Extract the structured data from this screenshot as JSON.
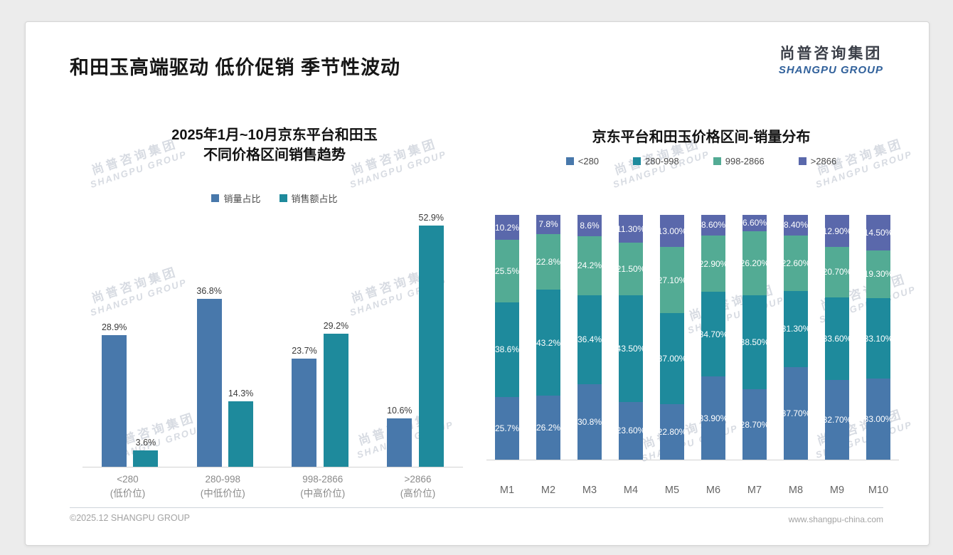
{
  "header": {
    "title": "和田玉高端驱动 低价促销 季节性波动",
    "logo_cn": "尚普咨询集团",
    "logo_en": "SHANGPU GROUP"
  },
  "watermark": {
    "line1": "尚普咨询集团",
    "line2": "SHANGPU GROUP"
  },
  "footer": {
    "left": "©2025.12 SHANGPU GROUP",
    "right": "www.shangpu-china.com"
  },
  "colors": {
    "steel_blue": "#4878ab",
    "teal": "#1e8a9c",
    "green": "#53ab94",
    "indigo": "#5a68ab"
  },
  "chart_data": [
    {
      "type": "bar",
      "title_lines": [
        "2025年1月~10月京东平台和田玉",
        "不同价格区间销售趋势"
      ],
      "legend_position": "top",
      "grid": false,
      "value_suffix": "%",
      "ylim": [
        0,
        55
      ],
      "categories": [
        "<280",
        "280-998",
        "998-2866",
        ">2866"
      ],
      "category_sublabels": [
        "(低价位)",
        "(中低价位)",
        "(中高价位)",
        "(高价位)"
      ],
      "series": [
        {
          "name": "销量占比",
          "color": "#4878ab",
          "values": [
            28.9,
            36.8,
            23.7,
            10.6
          ],
          "labels": [
            "28.9%",
            "36.8%",
            "23.7%",
            "10.6%"
          ]
        },
        {
          "name": "销售额占比",
          "color": "#1e8a9c",
          "values": [
            3.6,
            14.3,
            29.2,
            52.9
          ],
          "labels": [
            "3.6%",
            "14.3%",
            "29.2%",
            "52.9%"
          ]
        }
      ]
    },
    {
      "type": "stacked-bar-100",
      "title": "京东平台和田玉价格区间-销量分布",
      "legend_position": "top",
      "grid": false,
      "value_suffix": "%",
      "ylim": [
        0,
        100
      ],
      "categories": [
        "M1",
        "M2",
        "M3",
        "M4",
        "M5",
        "M6",
        "M7",
        "M8",
        "M9",
        "M10"
      ],
      "series": [
        {
          "name": "<280",
          "color": "#4878ab",
          "values": [
            25.7,
            26.2,
            30.8,
            23.6,
            22.8,
            33.9,
            28.7,
            37.7,
            32.7,
            33.0
          ],
          "labels": [
            "25.7%",
            "26.2%",
            "30.8%",
            "23.60%",
            "22.80%",
            "33.90%",
            "28.70%",
            "37.70%",
            "32.70%",
            "33.00%"
          ]
        },
        {
          "name": "280-998",
          "color": "#1e8a9c",
          "values": [
            38.6,
            43.2,
            36.4,
            43.5,
            37.0,
            34.7,
            38.5,
            31.3,
            33.6,
            33.1
          ],
          "labels": [
            "38.6%",
            "43.2%",
            "36.4%",
            "43.50%",
            "37.00%",
            "34.70%",
            "38.50%",
            "31.30%",
            "33.60%",
            "33.10%"
          ]
        },
        {
          "name": "998-2866",
          "color": "#53ab94",
          "values": [
            25.5,
            22.8,
            24.2,
            21.5,
            27.1,
            22.9,
            26.2,
            22.6,
            20.7,
            19.3
          ],
          "labels": [
            "25.5%",
            "22.8%",
            "24.2%",
            "21.50%",
            "27.10%",
            "22.90%",
            "26.20%",
            "22.60%",
            "20.70%",
            "19.30%"
          ]
        },
        {
          "name": ">2866",
          "color": "#5a68ab",
          "values": [
            10.2,
            7.8,
            8.6,
            11.3,
            13.0,
            8.6,
            6.6,
            8.4,
            12.9,
            14.5
          ],
          "labels": [
            "10.2%",
            "7.8%",
            "8.6%",
            "11.30%",
            "13.00%",
            "8.60%",
            "6.60%",
            "8.40%",
            "12.90%",
            "14.50%"
          ]
        }
      ]
    }
  ]
}
